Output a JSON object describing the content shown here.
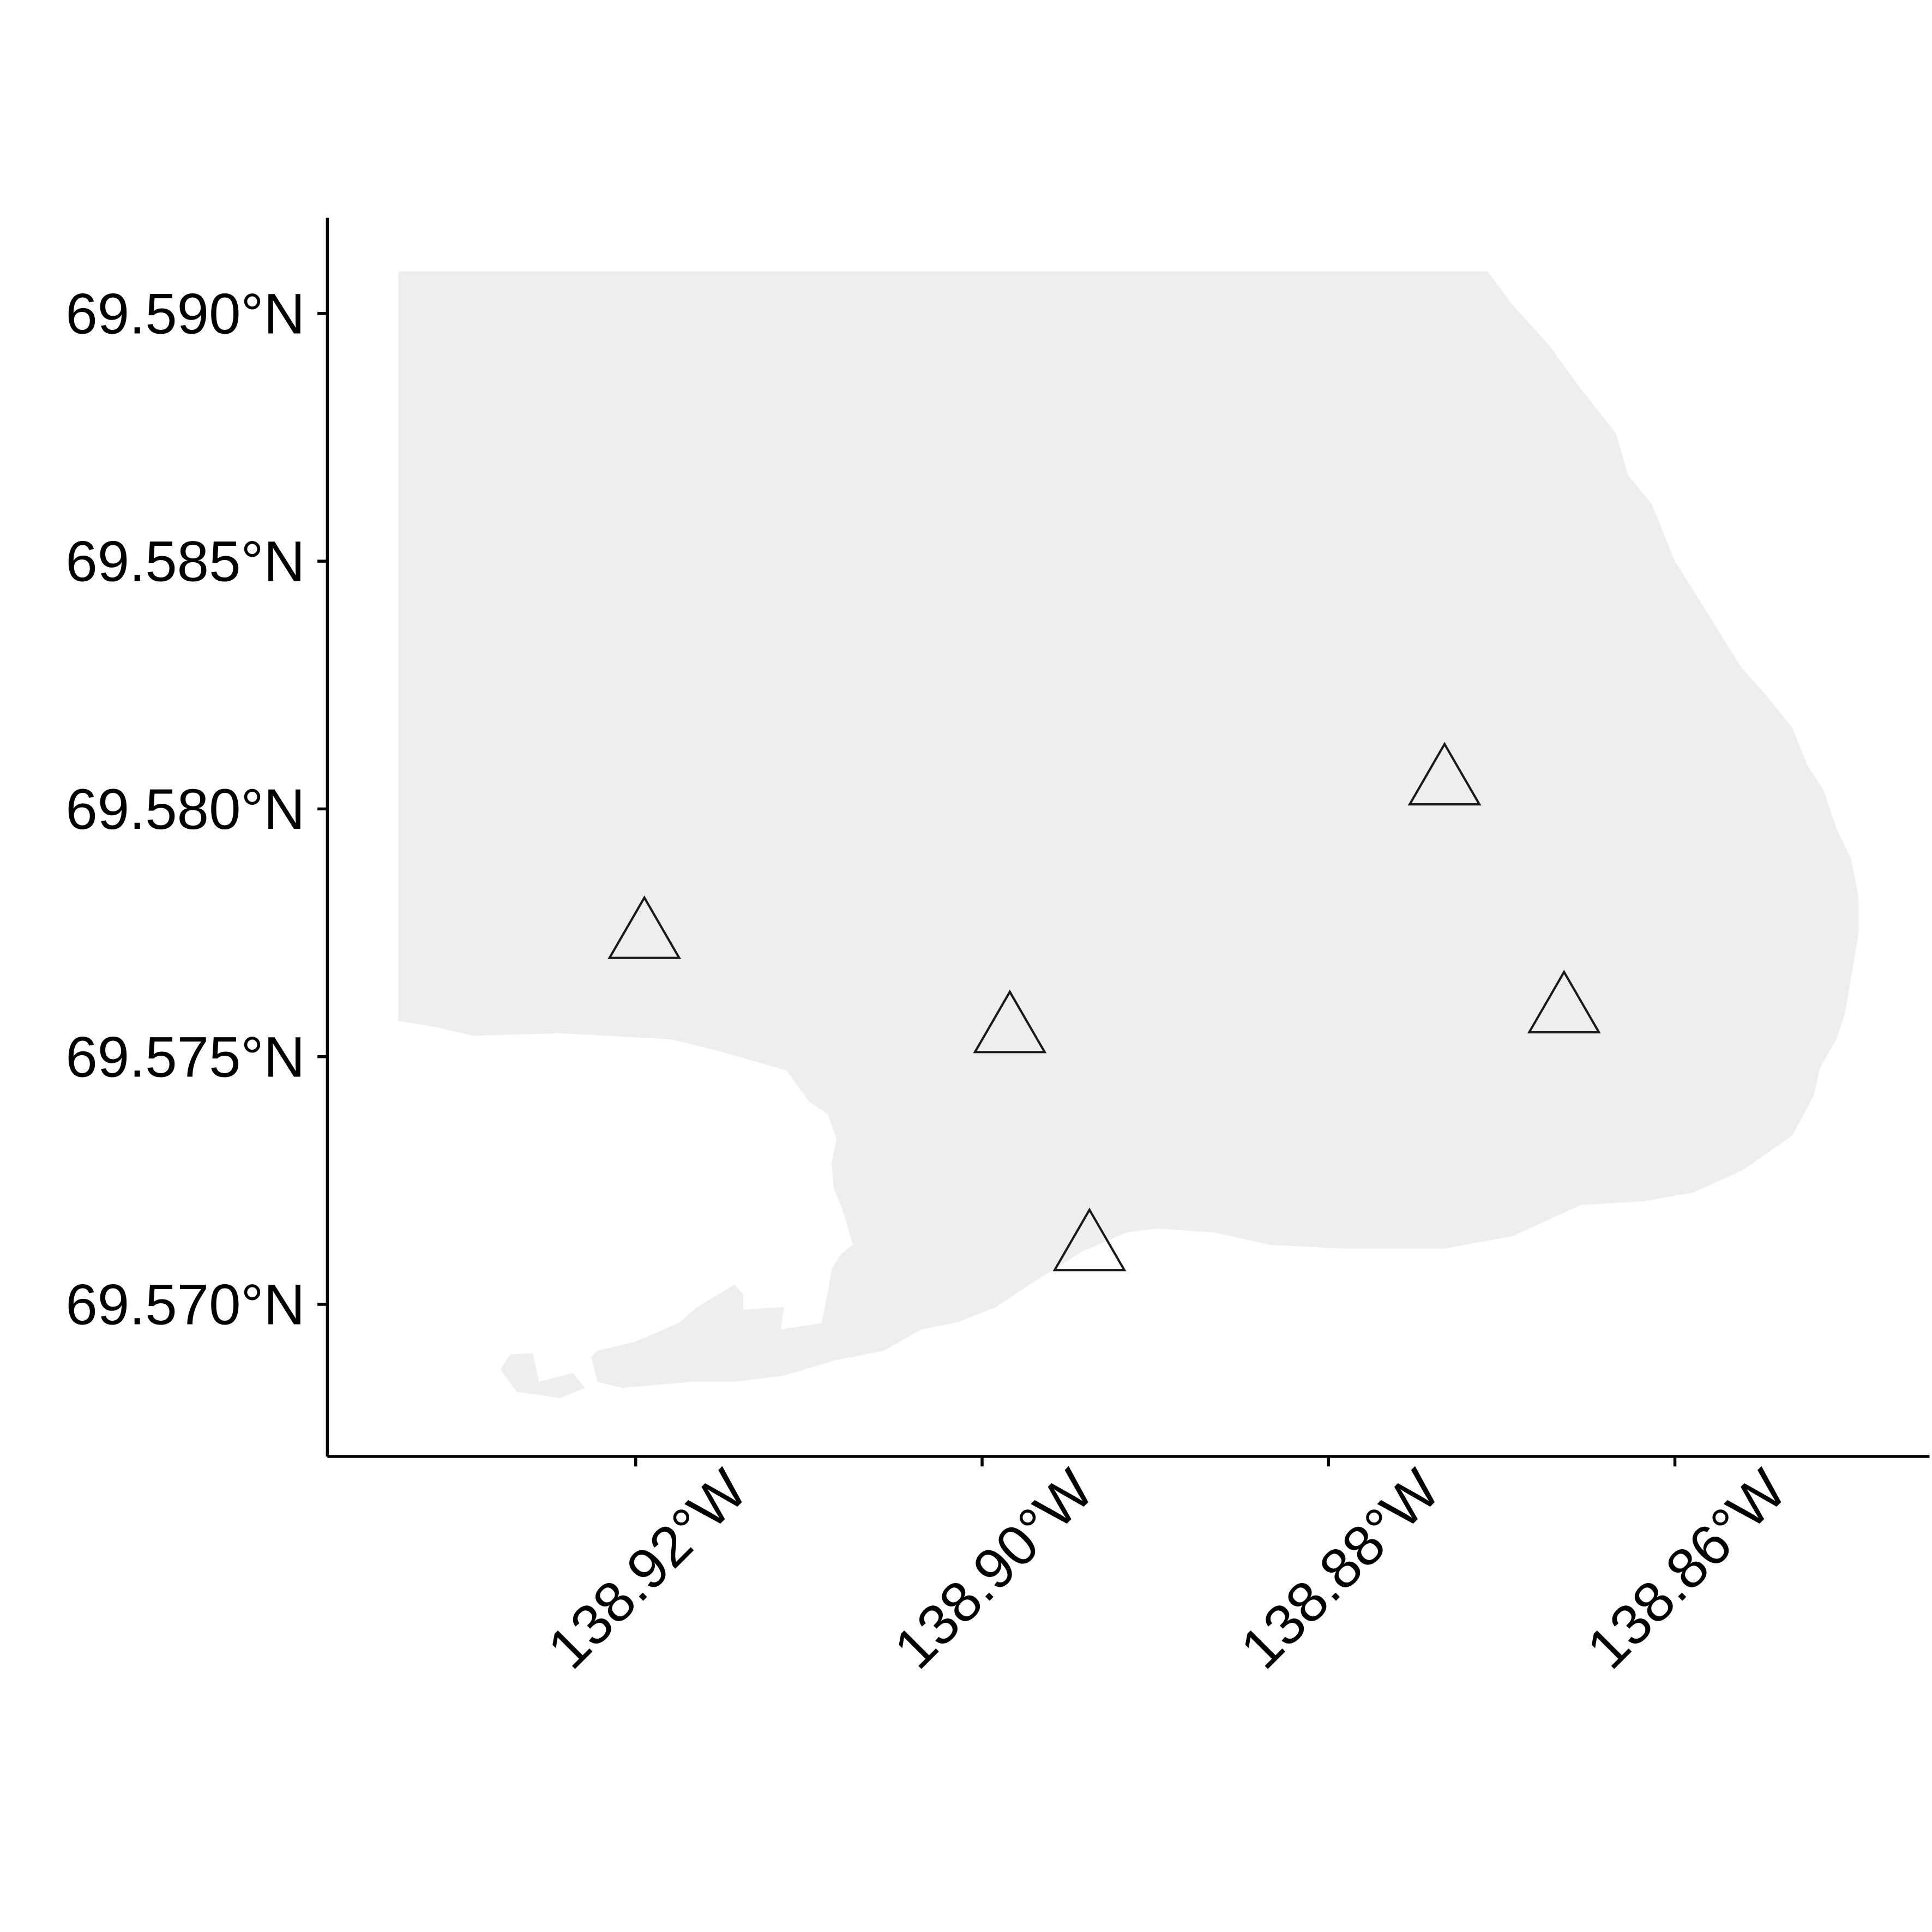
{
  "chart_data": {
    "type": "scatter",
    "x": [
      -138.9195,
      -138.8984,
      -138.8938,
      -138.8733,
      -138.8664
    ],
    "values": [
      69.5774,
      69.5755,
      69.5711,
      69.5805,
      69.5759
    ],
    "color": "#1a1a1a",
    "xlim": [
      -138.9378,
      -138.8453
    ],
    "ylim": [
      69.56693,
      69.59193
    ],
    "xticks": [
      {
        "value": -138.92,
        "label": "138.92°W"
      },
      {
        "value": -138.9,
        "label": "138.90°W"
      },
      {
        "value": -138.88,
        "label": "138.88°W"
      },
      {
        "value": -138.86,
        "label": "138.86°W"
      }
    ],
    "yticks": [
      {
        "value": 69.57,
        "label": "69.570°N"
      },
      {
        "value": 69.575,
        "label": "69.575°N"
      },
      {
        "value": 69.58,
        "label": "69.580°N"
      },
      {
        "value": 69.585,
        "label": "69.585°N"
      },
      {
        "value": 69.59,
        "label": "69.590°N"
      }
    ]
  }
}
